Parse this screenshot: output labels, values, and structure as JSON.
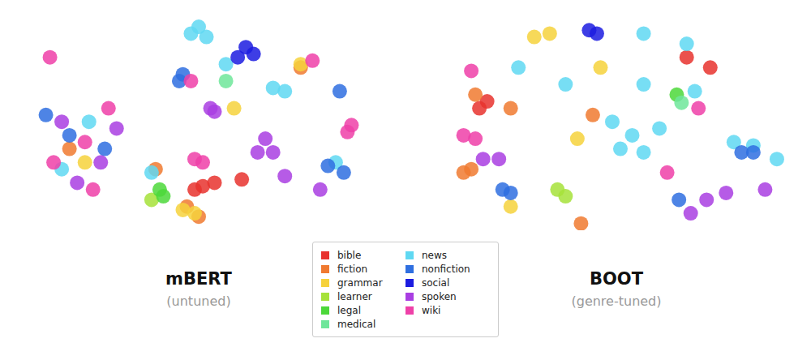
{
  "chart_data": [
    {
      "type": "scatter",
      "title": "mBERT",
      "subtitle": "(untuned)",
      "xlim": [
        0,
        100
      ],
      "ylim": [
        0,
        100
      ],
      "tick_labels": false,
      "legend": "bottom",
      "grid": false,
      "series": [
        {
          "name": "bible",
          "color": "#e8322e",
          "x": [
            51.1,
            54.3,
            48.9,
            61.7
          ],
          "y": [
            19.7,
            21.2,
            18.2,
            22.7
          ]
        },
        {
          "name": "fiction",
          "color": "#f07a30",
          "x": [
            46.8,
            50,
            77.7,
            38.3,
            14.9
          ],
          "y": [
            10.6,
            6.1,
            72.7,
            27.3,
            36.4
          ]
        },
        {
          "name": "grammar",
          "color": "#f6d23c",
          "x": [
            45.7,
            48.9,
            59.6,
            77.7,
            19.1
          ],
          "y": [
            9.1,
            7.6,
            54.5,
            74.2,
            30.3
          ]
        },
        {
          "name": "learner",
          "color": "#a6e23a",
          "x": [
            37.2
          ],
          "y": [
            13.6
          ]
        },
        {
          "name": "legal",
          "color": "#4cd83a",
          "x": [
            39.4,
            40.4
          ],
          "y": [
            18.2,
            15.2
          ]
        },
        {
          "name": "medical",
          "color": "#6ee69a",
          "x": [
            57.4
          ],
          "y": [
            66.7
          ]
        },
        {
          "name": "news",
          "color": "#5fd8f2",
          "x": [
            20.2,
            12.8,
            50,
            52.1,
            47.9,
            70.2,
            73.4,
            87.2,
            57.4,
            37.2
          ],
          "y": [
            48.5,
            27.3,
            90.9,
            86.4,
            87.9,
            63.6,
            62.1,
            30.3,
            74.2,
            25.8
          ]
        },
        {
          "name": "nonfiction",
          "color": "#2f6fe0",
          "x": [
            14.9,
            24.5,
            8.5,
            44.7,
            45.7,
            88.3,
            85.1,
            89.4
          ],
          "y": [
            42.4,
            36.4,
            51.5,
            66.7,
            69.7,
            62.1,
            28.8,
            25.8
          ]
        },
        {
          "name": "social",
          "color": "#1c1ce0",
          "x": [
            62.8,
            64.9,
            60.6
          ],
          "y": [
            81.8,
            78.8,
            77.3
          ]
        },
        {
          "name": "spoken",
          "color": "#a93ee2",
          "x": [
            12.8,
            23.4,
            17,
            27.7,
            53.2,
            54.3,
            68.1,
            66,
            70.2,
            73.4,
            83
          ],
          "y": [
            48.5,
            30.3,
            21.2,
            45.5,
            54.5,
            53,
            40.9,
            34.8,
            34.8,
            24.2,
            18.2
          ]
        },
        {
          "name": "wiki",
          "color": "#ee40a8",
          "x": [
            19.1,
            10.6,
            25.5,
            21.3,
            9.6,
            47.9,
            48.9,
            51.1,
            91.5,
            90.4,
            80.9
          ],
          "y": [
            39.4,
            30.3,
            54.5,
            18.2,
            77.3,
            66.7,
            31.8,
            30.3,
            47,
            43.9,
            75.8
          ]
        }
      ]
    },
    {
      "type": "scatter",
      "title": "BOOT",
      "subtitle": "(genre-tuned)",
      "xlim": [
        0,
        100
      ],
      "ylim": [
        0,
        100
      ],
      "tick_labels": false,
      "legend": "bottom",
      "grid": false,
      "series": [
        {
          "name": "bible",
          "color": "#e8322e",
          "x": [
            69.1,
            75.5,
            14.9,
            12.8
          ],
          "y": [
            77.3,
            72.7,
            57.6,
            54.5
          ]
        },
        {
          "name": "fiction",
          "color": "#f07a30",
          "x": [
            11.7,
            21.3,
            8.5,
            10.6,
            40.4,
            43.6
          ],
          "y": [
            60.6,
            54.5,
            25.8,
            27.3,
            3,
            51.5
          ]
        },
        {
          "name": "grammar",
          "color": "#f6d23c",
          "x": [
            27.7,
            31.9,
            45.7,
            21.3,
            39.4
          ],
          "y": [
            86.4,
            87.9,
            72.7,
            10.6,
            40.9
          ]
        },
        {
          "name": "learner",
          "color": "#a6e23a",
          "x": [
            34,
            36.2
          ],
          "y": [
            18.2,
            15.2
          ]
        },
        {
          "name": "legal",
          "color": "#4cd83a",
          "x": [
            66.4
          ],
          "y": [
            60.6
          ]
        },
        {
          "name": "medical",
          "color": "#6ee69a",
          "x": [
            67.7
          ],
          "y": [
            57
          ]
        },
        {
          "name": "news",
          "color": "#5fd8f2",
          "x": [
            57.4,
            69.1,
            23.4,
            36.2,
            57.4,
            71.3,
            51.1,
            57.4,
            54.3,
            81.9,
            87.2,
            93.6,
            61.7,
            48.9
          ],
          "y": [
            87.9,
            83.3,
            72.7,
            65.2,
            65.2,
            62.1,
            36.4,
            34.8,
            42.4,
            39.4,
            37.9,
            31.8,
            45.5,
            48.5
          ]
        },
        {
          "name": "nonfiction",
          "color": "#2f6fe0",
          "x": [
            21.3,
            19.1,
            84,
            87.2,
            67
          ],
          "y": [
            16.7,
            18.2,
            34.8,
            34.8,
            13.6
          ]
        },
        {
          "name": "social",
          "color": "#1c1ce0",
          "x": [
            44.7,
            42.6
          ],
          "y": [
            87.9,
            89.4
          ]
        },
        {
          "name": "spoken",
          "color": "#a93ee2",
          "x": [
            18.1,
            13.8,
            79.8,
            74.5,
            90.4,
            70.2
          ],
          "y": [
            31.8,
            31.8,
            16.7,
            13.6,
            18.2,
            7.6
          ]
        },
        {
          "name": "wiki",
          "color": "#ee40a8",
          "x": [
            10.6,
            8.5,
            11.7,
            63.8,
            72.3
          ],
          "y": [
            71.2,
            42.4,
            40.9,
            25.8,
            54.5
          ]
        }
      ]
    }
  ]
}
